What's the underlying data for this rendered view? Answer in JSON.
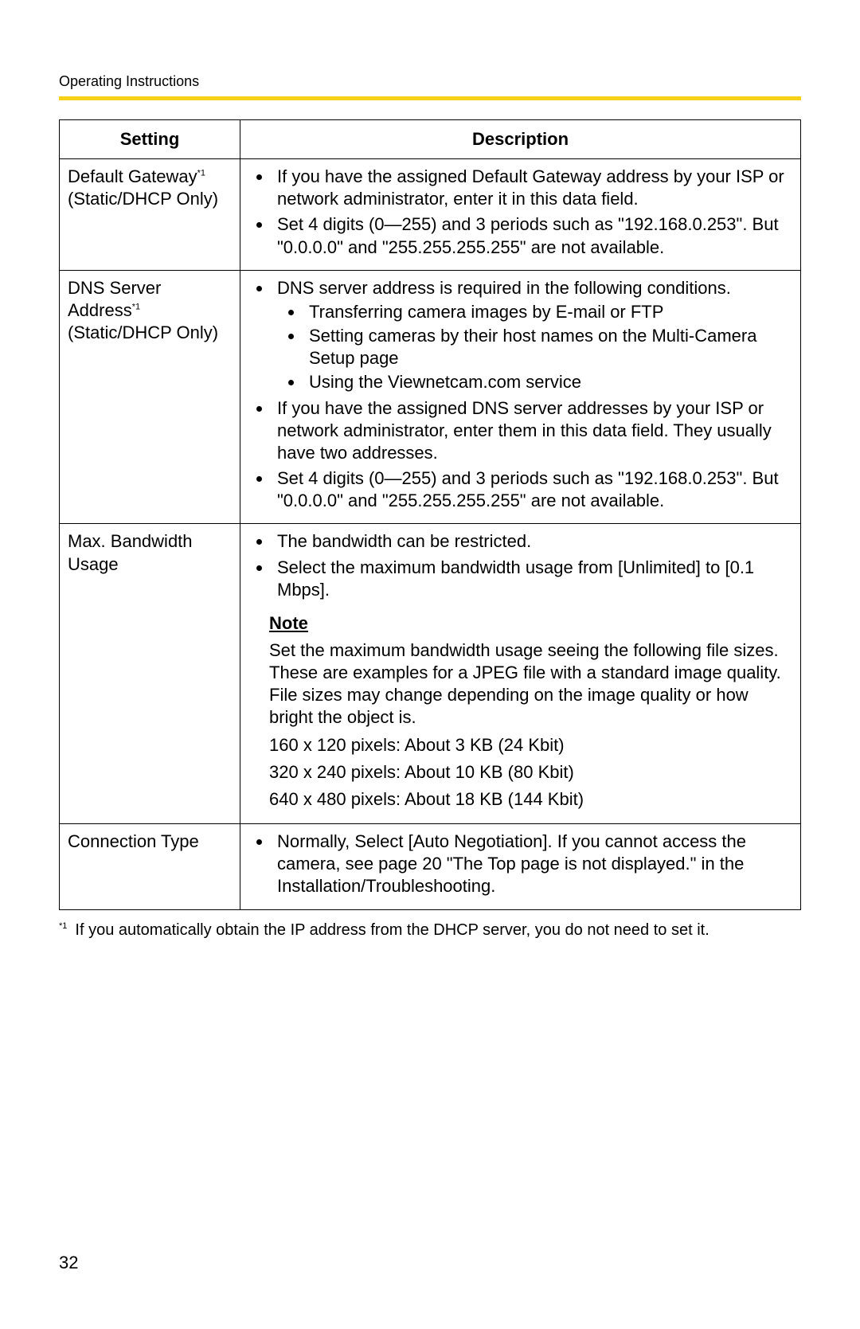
{
  "header": {
    "running": "Operating Instructions"
  },
  "accent_color": "#f7d117",
  "table": {
    "col_setting": "Setting",
    "col_description": "Description",
    "rows": {
      "r0": {
        "setting_l1a": "Default Gateway",
        "setting_l1sup": "*1",
        "setting_l2": "(Static/DHCP Only)",
        "b0": "If you have the assigned Default Gateway address by your ISP or network administrator, enter it in this data field.",
        "b1": "Set 4 digits (0—255) and 3 periods such as \"192.168.0.253\". But \"0.0.0.0\" and \"255.255.255.255\" are not available."
      },
      "r1": {
        "setting_l1a": "DNS Server Address",
        "setting_l1sup": "*1",
        "setting_l2": "(Static/DHCP Only)",
        "b0": "DNS server address is required in the following conditions.",
        "b0s0": "Transferring camera images by E-mail or FTP",
        "b0s1": "Setting cameras by their host names on the Multi-Camera Setup page",
        "b0s2": "Using the Viewnetcam.com service",
        "b1": "If you have the assigned DNS server addresses by your ISP or network administrator, enter them in this data field. They usually have two addresses.",
        "b2": "Set 4 digits (0—255) and 3 periods such as \"192.168.0.253\". But \"0.0.0.0\" and \"255.255.255.255\" are not available."
      },
      "r2": {
        "setting_l1": "Max. Bandwidth Usage",
        "b0": "The bandwidth can be restricted.",
        "b1": "Select the maximum bandwidth usage from [Unlimited] to [0.1 Mbps].",
        "note_h": "Note",
        "note_p": "Set the maximum bandwidth usage seeing the following file sizes. These are examples for a JPEG file with a standard image quality. File sizes may change depending on the image quality or how bright the object is.",
        "note_l0": "160 x 120 pixels: About 3 KB (24 Kbit)",
        "note_l1": "320 x 240 pixels: About 10 KB (80 Kbit)",
        "note_l2": "640 x 480 pixels: About 18 KB (144 Kbit)"
      },
      "r3": {
        "setting_l1": "Connection Type",
        "b0": "Normally, Select [Auto Negotiation]. If you cannot access the camera, see page 20 \"The Top page is not displayed.\" in the Installation/Troubleshooting."
      }
    }
  },
  "footnote": {
    "mark": "*1",
    "text": "If you automatically obtain the IP address from the DHCP server, you do not need to set it."
  },
  "page_number": "32"
}
